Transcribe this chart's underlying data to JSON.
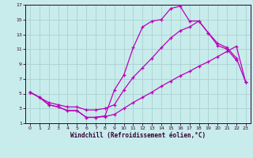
{
  "xlabel": "Windchill (Refroidissement éolien,°C)",
  "bg_color": "#c8ecec",
  "grid_color": "#aed4d4",
  "line_color": "#bb00bb",
  "xlim": [
    -0.5,
    23.5
  ],
  "ylim": [
    1,
    17
  ],
  "xticks": [
    0,
    1,
    2,
    3,
    4,
    5,
    6,
    7,
    8,
    9,
    10,
    11,
    12,
    13,
    14,
    15,
    16,
    17,
    18,
    19,
    20,
    21,
    22,
    23
  ],
  "yticks": [
    1,
    3,
    5,
    7,
    9,
    11,
    13,
    15,
    17
  ],
  "series1_x": [
    0,
    1,
    2,
    3,
    4,
    5,
    6,
    7,
    8,
    9,
    10,
    11,
    12,
    13,
    14,
    15,
    16,
    17,
    18,
    19,
    20,
    21,
    22,
    23
  ],
  "series1_y": [
    5.2,
    4.5,
    3.5,
    3.2,
    2.7,
    2.7,
    1.8,
    1.8,
    1.9,
    2.2,
    3.0,
    3.8,
    4.5,
    5.2,
    6.0,
    6.7,
    7.4,
    8.0,
    8.7,
    9.3,
    10.0,
    10.7,
    11.4,
    6.5
  ],
  "series2_x": [
    0,
    1,
    2,
    3,
    4,
    5,
    6,
    7,
    8,
    9,
    10,
    11,
    12,
    13,
    14,
    15,
    16,
    17,
    18,
    19,
    20,
    21,
    22
  ],
  "series2_y": [
    5.2,
    4.5,
    3.5,
    3.2,
    2.7,
    2.7,
    1.8,
    1.8,
    2.0,
    5.5,
    7.5,
    11.2,
    14.0,
    14.8,
    15.0,
    16.5,
    16.8,
    14.8,
    14.8,
    13.2,
    11.5,
    11.0,
    9.5
  ],
  "series3_x": [
    0,
    1,
    2,
    3,
    4,
    5,
    6,
    7,
    8,
    9,
    10,
    11,
    12,
    13,
    14,
    15,
    16,
    17,
    18,
    19,
    20,
    21,
    22,
    23
  ],
  "series3_y": [
    5.2,
    4.5,
    3.8,
    3.5,
    3.2,
    3.2,
    2.8,
    2.8,
    3.0,
    3.5,
    5.5,
    7.2,
    8.5,
    9.8,
    11.2,
    12.5,
    13.5,
    14.0,
    14.8,
    13.2,
    11.8,
    11.2,
    9.8,
    6.5
  ]
}
